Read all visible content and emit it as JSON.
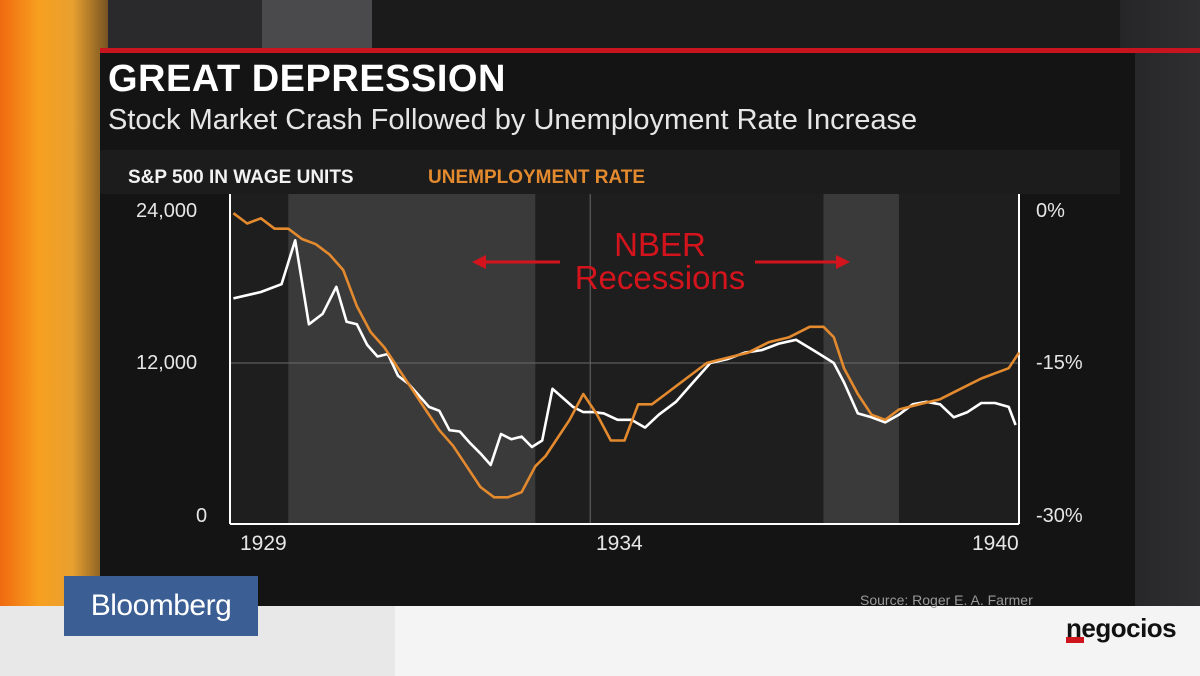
{
  "title": "GREAT DEPRESSION",
  "subtitle": "Stock Market Crash Followed by Unemployment Rate Increase",
  "source": "Source: Roger E. A. Farmer",
  "bloomberg_label": "Bloomberg",
  "negocios_label": "negocios",
  "colors": {
    "sp500": "#ffffff",
    "unemployment": "#e48a2e",
    "recession_band": "#3a3a3b",
    "annotation": "#d4141c",
    "accent_line": "#c8141e"
  },
  "chart_data": {
    "type": "line",
    "title": "GREAT DEPRESSION",
    "subtitle": "Stock Market Crash Followed by Unemployment Rate Increase",
    "legend": [
      "S&P 500 IN WAGE UNITS",
      "UNEMPLOYMENT RATE"
    ],
    "left_axis": {
      "ticks": [
        "24,000",
        "12,000",
        "0"
      ],
      "range": [
        0,
        24000
      ]
    },
    "right_axis": {
      "ticks": [
        "0%",
        "-15%",
        "-30%"
      ],
      "range": [
        -30,
        0
      ]
    },
    "x_ticks": [
      "1929",
      "1934",
      "1940"
    ],
    "x_range": [
      1928.75,
      1940.25
    ],
    "recessions": [
      {
        "start": 1929.6,
        "end": 1933.2
      },
      {
        "start": 1937.4,
        "end": 1938.5
      }
    ],
    "annotation": {
      "line1": "NBER",
      "line2": "Recessions"
    },
    "series": [
      {
        "name": "S&P 500 IN WAGE UNITS",
        "axis": "left",
        "x": [
          1928.8,
          1929.2,
          1929.5,
          1929.7,
          1929.9,
          1930.1,
          1930.3,
          1930.45,
          1930.6,
          1930.75,
          1930.9,
          1931.05,
          1931.2,
          1931.35,
          1931.5,
          1931.65,
          1931.8,
          1931.95,
          1932.1,
          1932.25,
          1932.4,
          1932.55,
          1932.7,
          1932.85,
          1933.0,
          1933.15,
          1933.3,
          1933.45,
          1933.6,
          1933.75,
          1933.9,
          1934.05,
          1934.2,
          1934.4,
          1934.6,
          1934.8,
          1935.0,
          1935.25,
          1935.5,
          1935.75,
          1936.0,
          1936.25,
          1936.5,
          1936.75,
          1937.0,
          1937.25,
          1937.4,
          1937.55,
          1937.7,
          1937.9,
          1938.1,
          1938.3,
          1938.5,
          1938.7,
          1938.9,
          1939.1,
          1939.3,
          1939.5,
          1939.7,
          1939.9,
          1940.1,
          1940.2
        ],
        "values": [
          17000,
          17500,
          18100,
          21500,
          15000,
          15800,
          17900,
          15200,
          15000,
          13400,
          12500,
          12700,
          11000,
          10400,
          9500,
          8600,
          8300,
          6800,
          6700,
          5800,
          5000,
          4100,
          6500,
          6100,
          6300,
          5500,
          6000,
          10000,
          9300,
          8600,
          8200,
          8200,
          8100,
          7600,
          7600,
          7000,
          8000,
          9000,
          10500,
          12000,
          12300,
          12800,
          13000,
          13500,
          13800,
          13000,
          12500,
          12000,
          10500,
          8100,
          7800,
          7400,
          8000,
          8800,
          9000,
          8800,
          7800,
          8200,
          8900,
          8900,
          8600,
          7200
        ]
      },
      {
        "name": "UNEMPLOYMENT RATE",
        "axis": "right",
        "x": [
          1928.8,
          1929.0,
          1929.2,
          1929.4,
          1929.6,
          1929.8,
          1930.0,
          1930.2,
          1930.4,
          1930.6,
          1930.8,
          1931.0,
          1931.2,
          1931.4,
          1931.6,
          1931.8,
          1932.0,
          1932.2,
          1932.4,
          1932.6,
          1932.8,
          1933.0,
          1933.2,
          1933.35,
          1933.5,
          1933.7,
          1933.9,
          1934.1,
          1934.3,
          1934.5,
          1934.7,
          1934.9,
          1935.1,
          1935.4,
          1935.7,
          1936.0,
          1936.3,
          1936.6,
          1936.9,
          1937.2,
          1937.4,
          1937.55,
          1937.7,
          1937.9,
          1938.1,
          1938.3,
          1938.5,
          1938.8,
          1939.1,
          1939.4,
          1939.7,
          1939.9,
          1940.1,
          1940.25
        ],
        "values": [
          -0.5,
          -1.5,
          -1.0,
          -2.0,
          -2.0,
          -3.0,
          -3.5,
          -4.5,
          -6.0,
          -9.5,
          -12.0,
          -13.5,
          -15.5,
          -17.5,
          -19.5,
          -21.5,
          -23.0,
          -25.0,
          -27.0,
          -28.0,
          -28.0,
          -27.5,
          -25.0,
          -24.0,
          -22.5,
          -20.5,
          -18.0,
          -20.0,
          -22.5,
          -22.5,
          -19.0,
          -19.0,
          -18.0,
          -16.5,
          -15.0,
          -14.5,
          -14.0,
          -13.0,
          -12.5,
          -11.5,
          -11.5,
          -12.5,
          -15.5,
          -18.0,
          -20.0,
          -20.5,
          -19.5,
          -19.0,
          -18.5,
          -17.5,
          -16.5,
          -16.0,
          -15.5,
          -14.0
        ]
      }
    ]
  }
}
